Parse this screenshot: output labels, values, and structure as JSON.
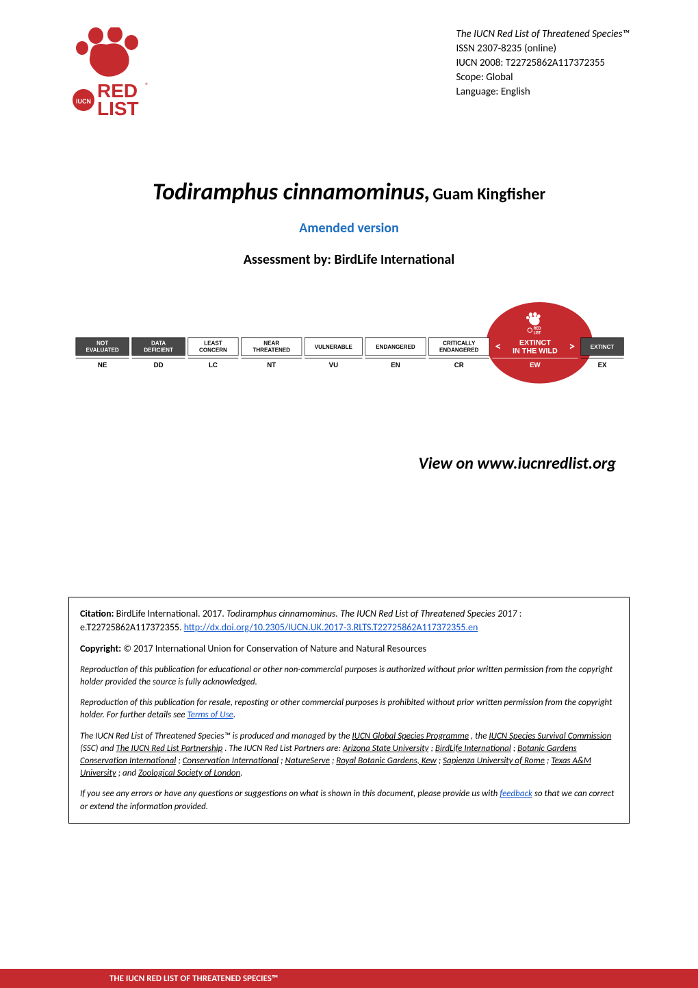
{
  "header": {
    "title_line": "The IUCN Red List of Threatened Species™",
    "issn": "ISSN 2307-8235 (online)",
    "iucn_code": "IUCN 2008: T22725862A117372355",
    "scope": "Scope: Global",
    "language": "Language: English"
  },
  "species": {
    "scientific_name": "Todiramphus cinnamominus,",
    "common_name": "Guam Kingfisher"
  },
  "amended_label": "Amended version",
  "assessment_by": "Assessment by: BirdLife International",
  "status_scale": {
    "categories": [
      {
        "label": "NOT EVALUATED",
        "code": "NE",
        "bg": "#494949",
        "text": "#ffffff"
      },
      {
        "label": "DATA DEFICIENT",
        "code": "DD",
        "bg": "#494949",
        "text": "#ffffff"
      },
      {
        "label": "LEAST CONCERN",
        "code": "LC",
        "bg": "#ffffff",
        "text": "#000000"
      },
      {
        "label": "NEAR THREATENED",
        "code": "NT",
        "bg": "#ffffff",
        "text": "#000000"
      },
      {
        "label": "VULNERABLE",
        "code": "VU",
        "bg": "#ffffff",
        "text": "#000000"
      },
      {
        "label": "ENDANGERED",
        "code": "EN",
        "bg": "#ffffff",
        "text": "#000000"
      },
      {
        "label": "CRITICALLY ENDANGERED",
        "code": "CR",
        "bg": "#ffffff",
        "text": "#000000"
      },
      {
        "label": "EXTINCT IN THE WILD",
        "code": "EW",
        "bg": "#c52a2f",
        "text": "#ffffff",
        "highlighted": true
      },
      {
        "label": "EXTINCT",
        "code": "EX",
        "bg": "#494949",
        "text": "#ffffff"
      }
    ],
    "highlight_index": 7
  },
  "view_link": "View on www.iucnredlist.org",
  "citation": {
    "citation_label": "Citation:",
    "citation_text": "BirdLife International. 2017. ",
    "citation_species": "Todiramphus cinnamominus. The IUCN Red List of Threatened Species 2017",
    "citation_id": ": e.T22725862A117372355. ",
    "doi_link": "http://dx.doi.org/10.2305/IUCN.UK.2017-3.RLTS.T22725862A117372355.en",
    "copyright_label": "Copyright:",
    "copyright_text": " © 2017 International Union for Conservation of Nature and Natural Resources",
    "repro1": "Reproduction of this publication for educational or other non-commercial purposes is authorized without prior written permission from the copyright holder provided the source is fully acknowledged.",
    "repro2_a": "Reproduction of this publication for resale, reposting or other commercial purposes is prohibited without prior written permission from the copyright holder. For further details see ",
    "terms_link": "Terms of Use",
    "repro2_b": ".",
    "produced_a": "The IUCN Red List of Threatened Species™ is produced and managed by the ",
    "link_gsp": "IUCN Global Species Programme",
    "produced_b": ", the ",
    "link_ssc": "IUCN Species Survival Commission",
    "produced_c": " (SSC) and ",
    "link_partnership": "The IUCN Red List Partnership",
    "produced_d": ". The IUCN Red List Partners are: ",
    "link_asu": "Arizona State University",
    "sep1": "; ",
    "link_birdlife": "BirdLife International",
    "sep2": "; ",
    "link_bgci": "Botanic Gardens Conservation International",
    "sep3": "; ",
    "link_ci": "Conservation International",
    "sep4": "; ",
    "link_natureserve": "NatureServe",
    "sep5": "; ",
    "link_kew": "Royal Botanic Gardens, Kew",
    "sep6": "; ",
    "link_sapienza": "Sapienza University of Rome",
    "sep7": "; ",
    "link_tamu": "Texas A&M University",
    "sep8": "; and ",
    "link_zsl": "Zoological Society of London",
    "produced_e": ".",
    "feedback_a": "If you see any errors or have any questions or suggestions on what is shown in this document, please provide us with ",
    "feedback_link": "feedback",
    "feedback_b": " so that we can correct or extend the information provided."
  },
  "footer": "THE IUCN RED LIST OF THREATENED SPECIES™",
  "colors": {
    "red": "#c52a2f",
    "blue": "#1f6fc0",
    "link_blue": "#1155cc",
    "dark": "#494949"
  }
}
